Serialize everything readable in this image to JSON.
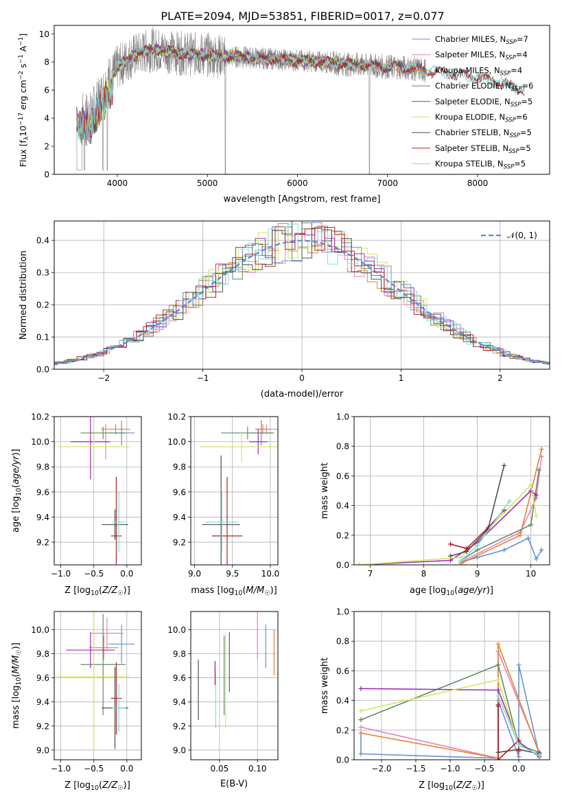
{
  "figure_title": "PLATE=2094, MJD=53851, FIBERID=0017, z=0.077",
  "colors": {
    "Chabrier MILES": "#6a8fd5",
    "Salpeter MILES": "#e87fbe",
    "Kroupa MILES": "#e1822f",
    "Chabrier ELODIE": "#5e8a62",
    "Salpeter ELODIE": "#9a2bb0",
    "Kroupa ELODIE": "#cfe85a",
    "Chabrier STELIB": "#4e4e4e",
    "Salpeter STELIB": "#b41f22",
    "Kroupa STELIB": "#7fdcdc",
    "data": "#808080",
    "normal_curve": "#5a8ad6"
  },
  "chart_data": [
    {
      "id": "spectrum",
      "type": "line",
      "title": "",
      "xlabel": "wavelength [Angstrom, rest frame]",
      "ylabel": "Flux [f",
      "ylabel_parts": [
        "Flux [f",
        "λ",
        "10",
        "−17",
        " erg cm",
        "−2",
        " s",
        "−1",
        " A",
        "−1",
        "]"
      ],
      "xlim": [
        3300,
        8800
      ],
      "ylim": [
        0,
        10.6
      ],
      "xticks": [
        4000,
        5000,
        6000,
        7000,
        8000
      ],
      "yticks": [
        0,
        2,
        4,
        6,
        8,
        10
      ],
      "grid": false,
      "legend": "top-right",
      "legend_entries": [
        {
          "pre": "Chabrier MILES, N",
          "sub": "SSP",
          "post": "=7"
        },
        {
          "pre": "Salpeter MILES, N",
          "sub": "SSP",
          "post": "=4"
        },
        {
          "pre": "Kroupa MILES, N",
          "sub": "SSP",
          "post": "=4"
        },
        {
          "pre": "Chabrier ELODIE, N",
          "sub": "SSP",
          "post": "=6"
        },
        {
          "pre": "Salpeter ELODIE, N",
          "sub": "SSP",
          "post": "=5"
        },
        {
          "pre": "Kroupa ELODIE, N",
          "sub": "SSP",
          "post": "=6"
        },
        {
          "pre": "Chabrier STELIB, N",
          "sub": "SSP",
          "post": "=5"
        },
        {
          "pre": "Salpeter STELIB, N",
          "sub": "SSP",
          "post": "=5"
        },
        {
          "pre": "Kroupa STELIB, N",
          "sub": "SSP",
          "post": "=5"
        }
      ],
      "continuum": {
        "x": [
          3550,
          3600,
          3700,
          3800,
          3900,
          4000,
          4100,
          4200,
          4300,
          4400,
          4500,
          4700,
          5000,
          5200,
          5500,
          6000,
          6300,
          6600,
          6900,
          7200,
          7400,
          7700,
          8000,
          8200,
          8400,
          8500
        ],
        "y": [
          4.8,
          4.3,
          4.4,
          5.4,
          6.8,
          7.6,
          8.1,
          8.5,
          8.7,
          8.9,
          8.8,
          8.6,
          8.5,
          8.4,
          8.3,
          8.1,
          8.0,
          7.8,
          7.7,
          7.6,
          7.4,
          7.2,
          6.9,
          6.6,
          6.2,
          6.0
        ]
      }
    },
    {
      "id": "residuals",
      "type": "step",
      "title": "",
      "xlabel": "(data-model)/error",
      "ylabel": "Normed distribution",
      "xlim": [
        -2.5,
        2.5
      ],
      "ylim": [
        0,
        0.46
      ],
      "xticks": [
        -2,
        -1,
        0,
        1,
        2
      ],
      "yticks": [
        0.0,
        0.1,
        0.2,
        0.3,
        0.4
      ],
      "grid": true,
      "legend": "top-right",
      "legend_label": "𝒩(0, 1)",
      "normal": {
        "mean": 0,
        "sigma": 1
      }
    },
    {
      "id": "Z-age",
      "type": "errorbar",
      "xlabel": "Z [log10(Z/Z☉)]",
      "ylabel": "age  [log10(age/yr)]",
      "xlim": [
        -1.1,
        0.22
      ],
      "ylim": [
        9.02,
        10.2
      ],
      "xticks": [
        -1.0,
        -0.5,
        0.0
      ],
      "yticks": [
        9.2,
        9.4,
        9.6,
        9.8,
        10.0,
        10.2
      ],
      "grid": true,
      "points": [
        {
          "model": "Chabrier MILES",
          "x": -0.08,
          "xerr": 0.2,
          "y": 10.07,
          "yerr": 0.1
        },
        {
          "model": "Salpeter MILES",
          "x": -0.32,
          "xerr": 0.05,
          "y": 10.0,
          "yerr": 0.14
        },
        {
          "model": "Kroupa MILES",
          "x": -0.17,
          "xerr": 0.22,
          "y": 10.1,
          "yerr": 0.04
        },
        {
          "model": "Chabrier ELODIE",
          "x": -0.36,
          "xerr": 0.34,
          "y": 10.07,
          "yerr": 0.05
        },
        {
          "model": "Salpeter ELODIE",
          "x": -0.55,
          "xerr": 0.3,
          "y": 10.0,
          "yerr": 0.3
        },
        {
          "model": "Kroupa ELODIE",
          "x": -0.5,
          "xerr": 0.54,
          "y": 9.96,
          "yerr": 0.1
        },
        {
          "model": "Chabrier STELIB",
          "x": -0.18,
          "xerr": 0.2,
          "y": 9.34,
          "yerr": 0.12
        },
        {
          "model": "Salpeter STELIB",
          "x": -0.16,
          "xerr": 0.08,
          "y": 9.25,
          "yerr": 0.47
        },
        {
          "model": "Kroupa STELIB",
          "x": -0.12,
          "xerr": 0.1,
          "y": 9.36,
          "yerr": 0.24
        }
      ]
    },
    {
      "id": "mass-age",
      "type": "errorbar",
      "xlabel": "mass [log10(M/M☉)]",
      "ylabel": "",
      "xlim": [
        8.95,
        10.1
      ],
      "ylim": [
        9.02,
        10.2
      ],
      "xticks": [
        9.0,
        9.5,
        10.0
      ],
      "yticks": [
        9.2,
        9.4,
        9.6,
        9.8,
        10.0,
        10.2
      ],
      "grid": true,
      "points": [
        {
          "model": "Chabrier MILES",
          "x": 9.88,
          "xerr": 0.15,
          "y": 10.07,
          "yerr": 0.1
        },
        {
          "model": "Salpeter MILES",
          "x": 9.95,
          "xerr": 0.15,
          "y": 10.1,
          "yerr": 0.04
        },
        {
          "model": "Kroupa MILES",
          "x": 9.9,
          "xerr": 0.1,
          "y": 10.1,
          "yerr": 0.04
        },
        {
          "model": "Chabrier ELODIE",
          "x": 9.7,
          "xerr": 0.35,
          "y": 10.07,
          "yerr": 0.05
        },
        {
          "model": "Salpeter ELODIE",
          "x": 9.84,
          "xerr": 0.12,
          "y": 10.0,
          "yerr": 0.1
        },
        {
          "model": "Kroupa ELODIE",
          "x": 9.62,
          "xerr": 0.55,
          "y": 9.96,
          "yerr": 0.12
        },
        {
          "model": "Chabrier STELIB",
          "x": 9.35,
          "xerr": 0.25,
          "y": 9.34,
          "yerr": 0.55
        },
        {
          "model": "Salpeter STELIB",
          "x": 9.43,
          "xerr": 0.2,
          "y": 9.25,
          "yerr": 0.47
        },
        {
          "model": "Kroupa STELIB",
          "x": 9.36,
          "xerr": 0.22,
          "y": 9.36,
          "yerr": 0.24
        }
      ]
    },
    {
      "id": "age-weight",
      "type": "line",
      "xlabel": "age  [log10(age/yr)]",
      "ylabel": "mass weight",
      "xlim": [
        6.7,
        10.35
      ],
      "ylim": [
        0,
        1.0
      ],
      "xticks": [
        7,
        8,
        9,
        10
      ],
      "yticks": [
        0.0,
        0.2,
        0.4,
        0.6,
        0.8,
        1.0
      ],
      "grid": true,
      "series": [
        {
          "model": "Chabrier MILES",
          "x": [
            8.7,
            9.0,
            9.5,
            9.95,
            10.1,
            10.2
          ],
          "y": [
            0.02,
            0.05,
            0.1,
            0.18,
            0.04,
            0.1
          ]
        },
        {
          "model": "Salpeter MILES",
          "x": [
            8.7,
            9.8,
            10.1,
            10.2
          ],
          "y": [
            0.02,
            0.22,
            0.45,
            0.73
          ]
        },
        {
          "model": "Kroupa MILES",
          "x": [
            8.7,
            9.8,
            10.2
          ],
          "y": [
            0.01,
            0.2,
            0.78
          ]
        },
        {
          "model": "Chabrier ELODIE",
          "x": [
            8.7,
            9.0,
            10.0,
            10.15
          ],
          "y": [
            0.03,
            0.1,
            0.27,
            0.64
          ]
        },
        {
          "model": "Salpeter ELODIE",
          "x": [
            6.8,
            8.5,
            9.0,
            10.0,
            10.1
          ],
          "y": [
            0.0,
            0.03,
            0.15,
            0.5,
            0.47
          ]
        },
        {
          "model": "Kroupa ELODIE",
          "x": [
            6.8,
            8.7,
            10.0,
            10.1
          ],
          "y": [
            0.0,
            0.05,
            0.54,
            0.33
          ]
        },
        {
          "model": "Chabrier STELIB",
          "x": [
            8.5,
            8.8,
            9.2,
            9.5
          ],
          "y": [
            0.06,
            0.09,
            0.24,
            0.67
          ]
        },
        {
          "model": "Salpeter STELIB",
          "x": [
            8.5,
            8.8,
            9.2,
            9.5
          ],
          "y": [
            0.14,
            0.11,
            0.25,
            0.37
          ]
        },
        {
          "model": "Kroupa STELIB",
          "x": [
            8.7,
            9.0,
            9.6
          ],
          "y": [
            0.03,
            0.13,
            0.43
          ]
        }
      ]
    },
    {
      "id": "Z-mass",
      "type": "errorbar",
      "xlabel": "Z [log10(Z/Z☉)]",
      "ylabel": "mass [log10(M/M☉)]",
      "xlim": [
        -1.1,
        0.22
      ],
      "ylim": [
        8.92,
        10.15
      ],
      "xticks": [
        -1.0,
        -0.5,
        0.0
      ],
      "yticks": [
        9.0,
        9.2,
        9.4,
        9.6,
        9.8,
        10.0
      ],
      "grid": true,
      "points": [
        {
          "model": "Chabrier MILES",
          "x": -0.08,
          "xerr": 0.2,
          "y": 9.88,
          "yerr": 0.16
        },
        {
          "model": "Salpeter MILES",
          "x": -0.3,
          "xerr": 0.25,
          "y": 9.97,
          "yerr": 0.13
        },
        {
          "model": "Kroupa MILES",
          "x": -0.35,
          "xerr": 0.22,
          "y": 9.85,
          "yerr": 0.1
        },
        {
          "model": "Chabrier ELODIE",
          "x": -0.36,
          "xerr": 0.34,
          "y": 9.71,
          "yerr": 0.42
        },
        {
          "model": "Salpeter ELODIE",
          "x": -0.55,
          "xerr": 0.37,
          "y": 9.83,
          "yerr": 0.15
        },
        {
          "model": "Kroupa ELODIE",
          "x": -0.5,
          "xerr": 0.54,
          "y": 9.61,
          "yerr": 0.63
        },
        {
          "model": "Chabrier STELIB",
          "x": -0.18,
          "xerr": 0.2,
          "y": 9.35,
          "yerr": 0.34
        },
        {
          "model": "Salpeter STELIB",
          "x": -0.16,
          "xerr": 0.08,
          "y": 9.43,
          "yerr": 0.3
        },
        {
          "model": "Kroupa STELIB",
          "x": -0.12,
          "xerr": 0.1,
          "y": 9.35,
          "yerr": 0.2
        }
      ]
    },
    {
      "id": "ebv-mass",
      "type": "errorbar",
      "xlabel": "E(B-V)",
      "ylabel": "",
      "xlim": [
        0.012,
        0.127
      ],
      "ylim": [
        8.92,
        10.15
      ],
      "xticks": [
        0.05,
        0.1
      ],
      "yticks": [
        9.0,
        9.2,
        9.4,
        9.6,
        9.8,
        10.0
      ],
      "grid": true,
      "points": [
        {
          "model": "Chabrier STELIB",
          "x": 0.022,
          "xerr": 0.0,
          "y": 9.5,
          "yerr": 0.25
        },
        {
          "model": "Salpeter STELIB",
          "x": 0.044,
          "xerr": 0.0,
          "y": 9.64,
          "yerr": 0.1
        },
        {
          "model": "Kroupa STELIB",
          "x": 0.045,
          "xerr": 0.0,
          "y": 9.42,
          "yerr": 0.24
        },
        {
          "model": "Chabrier ELODIE",
          "x": 0.056,
          "xerr": 0.0,
          "y": 9.62,
          "yerr": 0.33
        },
        {
          "model": "Kroupa ELODIE",
          "x": 0.058,
          "xerr": 0.0,
          "y": 9.58,
          "yerr": 0.4
        },
        {
          "model": "Salpeter ELODIE",
          "x": 0.063,
          "xerr": 0.0,
          "y": 9.73,
          "yerr": 0.25
        },
        {
          "model": "Salpeter MILES",
          "x": 0.1,
          "xerr": 0.0,
          "y": 9.95,
          "yerr": 0.2
        },
        {
          "model": "Chabrier MILES",
          "x": 0.111,
          "xerr": 0.0,
          "y": 9.86,
          "yerr": 0.18
        },
        {
          "model": "Kroupa MILES",
          "x": 0.122,
          "xerr": 0.0,
          "y": 9.81,
          "yerr": 0.19
        }
      ]
    },
    {
      "id": "Z-weight",
      "type": "line",
      "xlabel": "Z [log10(Z/Z☉)]",
      "ylabel": "mass weight",
      "xlim": [
        -2.4,
        0.45
      ],
      "ylim": [
        0,
        1.0
      ],
      "xticks": [
        -2.0,
        -1.5,
        -1.0,
        -0.5,
        0.0
      ],
      "yticks": [
        0.0,
        0.2,
        0.4,
        0.6,
        0.8,
        1.0
      ],
      "grid": true,
      "series": [
        {
          "model": "Chabrier MILES",
          "x": [
            -2.3,
            -2.3,
            -0.3,
            -0.3,
            0.0,
            0.0,
            0.3
          ],
          "y": [
            0.18,
            0.04,
            0.01,
            0.4,
            0.02,
            0.64,
            0.03
          ]
        },
        {
          "model": "Salpeter MILES",
          "x": [
            -2.3,
            -0.3,
            -0.3,
            0.3
          ],
          "y": [
            0.22,
            0.01,
            0.73,
            0.05
          ]
        },
        {
          "model": "Kroupa MILES",
          "x": [
            -2.3,
            -0.3,
            -0.3,
            0.3
          ],
          "y": [
            0.18,
            0.01,
            0.78,
            0.04
          ]
        },
        {
          "model": "Chabrier ELODIE",
          "x": [
            -2.3,
            -0.3,
            0.0,
            0.3
          ],
          "y": [
            0.27,
            0.64,
            0.1,
            0.05
          ]
        },
        {
          "model": "Salpeter ELODIE",
          "x": [
            -2.3,
            -0.3,
            0.0,
            0.3
          ],
          "y": [
            0.48,
            0.47,
            0.12,
            0.02
          ]
        },
        {
          "model": "Kroupa ELODIE",
          "x": [
            -2.3,
            -0.3,
            0.0,
            0.3
          ],
          "y": [
            0.33,
            0.54,
            0.1,
            0.03
          ]
        },
        {
          "model": "Chabrier STELIB",
          "x": [
            -0.3,
            -0.3,
            0.0,
            0.3
          ],
          "y": [
            0.36,
            0.05,
            0.07,
            0.04
          ]
        },
        {
          "model": "Salpeter STELIB",
          "x": [
            -0.3,
            -0.3,
            0.0,
            0.0
          ],
          "y": [
            0.37,
            0.0,
            0.13,
            0.06
          ]
        },
        {
          "model": "Kroupa STELIB",
          "x": [
            -0.3,
            0.0,
            0.3
          ],
          "y": [
            0.43,
            0.1,
            0.03
          ]
        }
      ]
    }
  ]
}
